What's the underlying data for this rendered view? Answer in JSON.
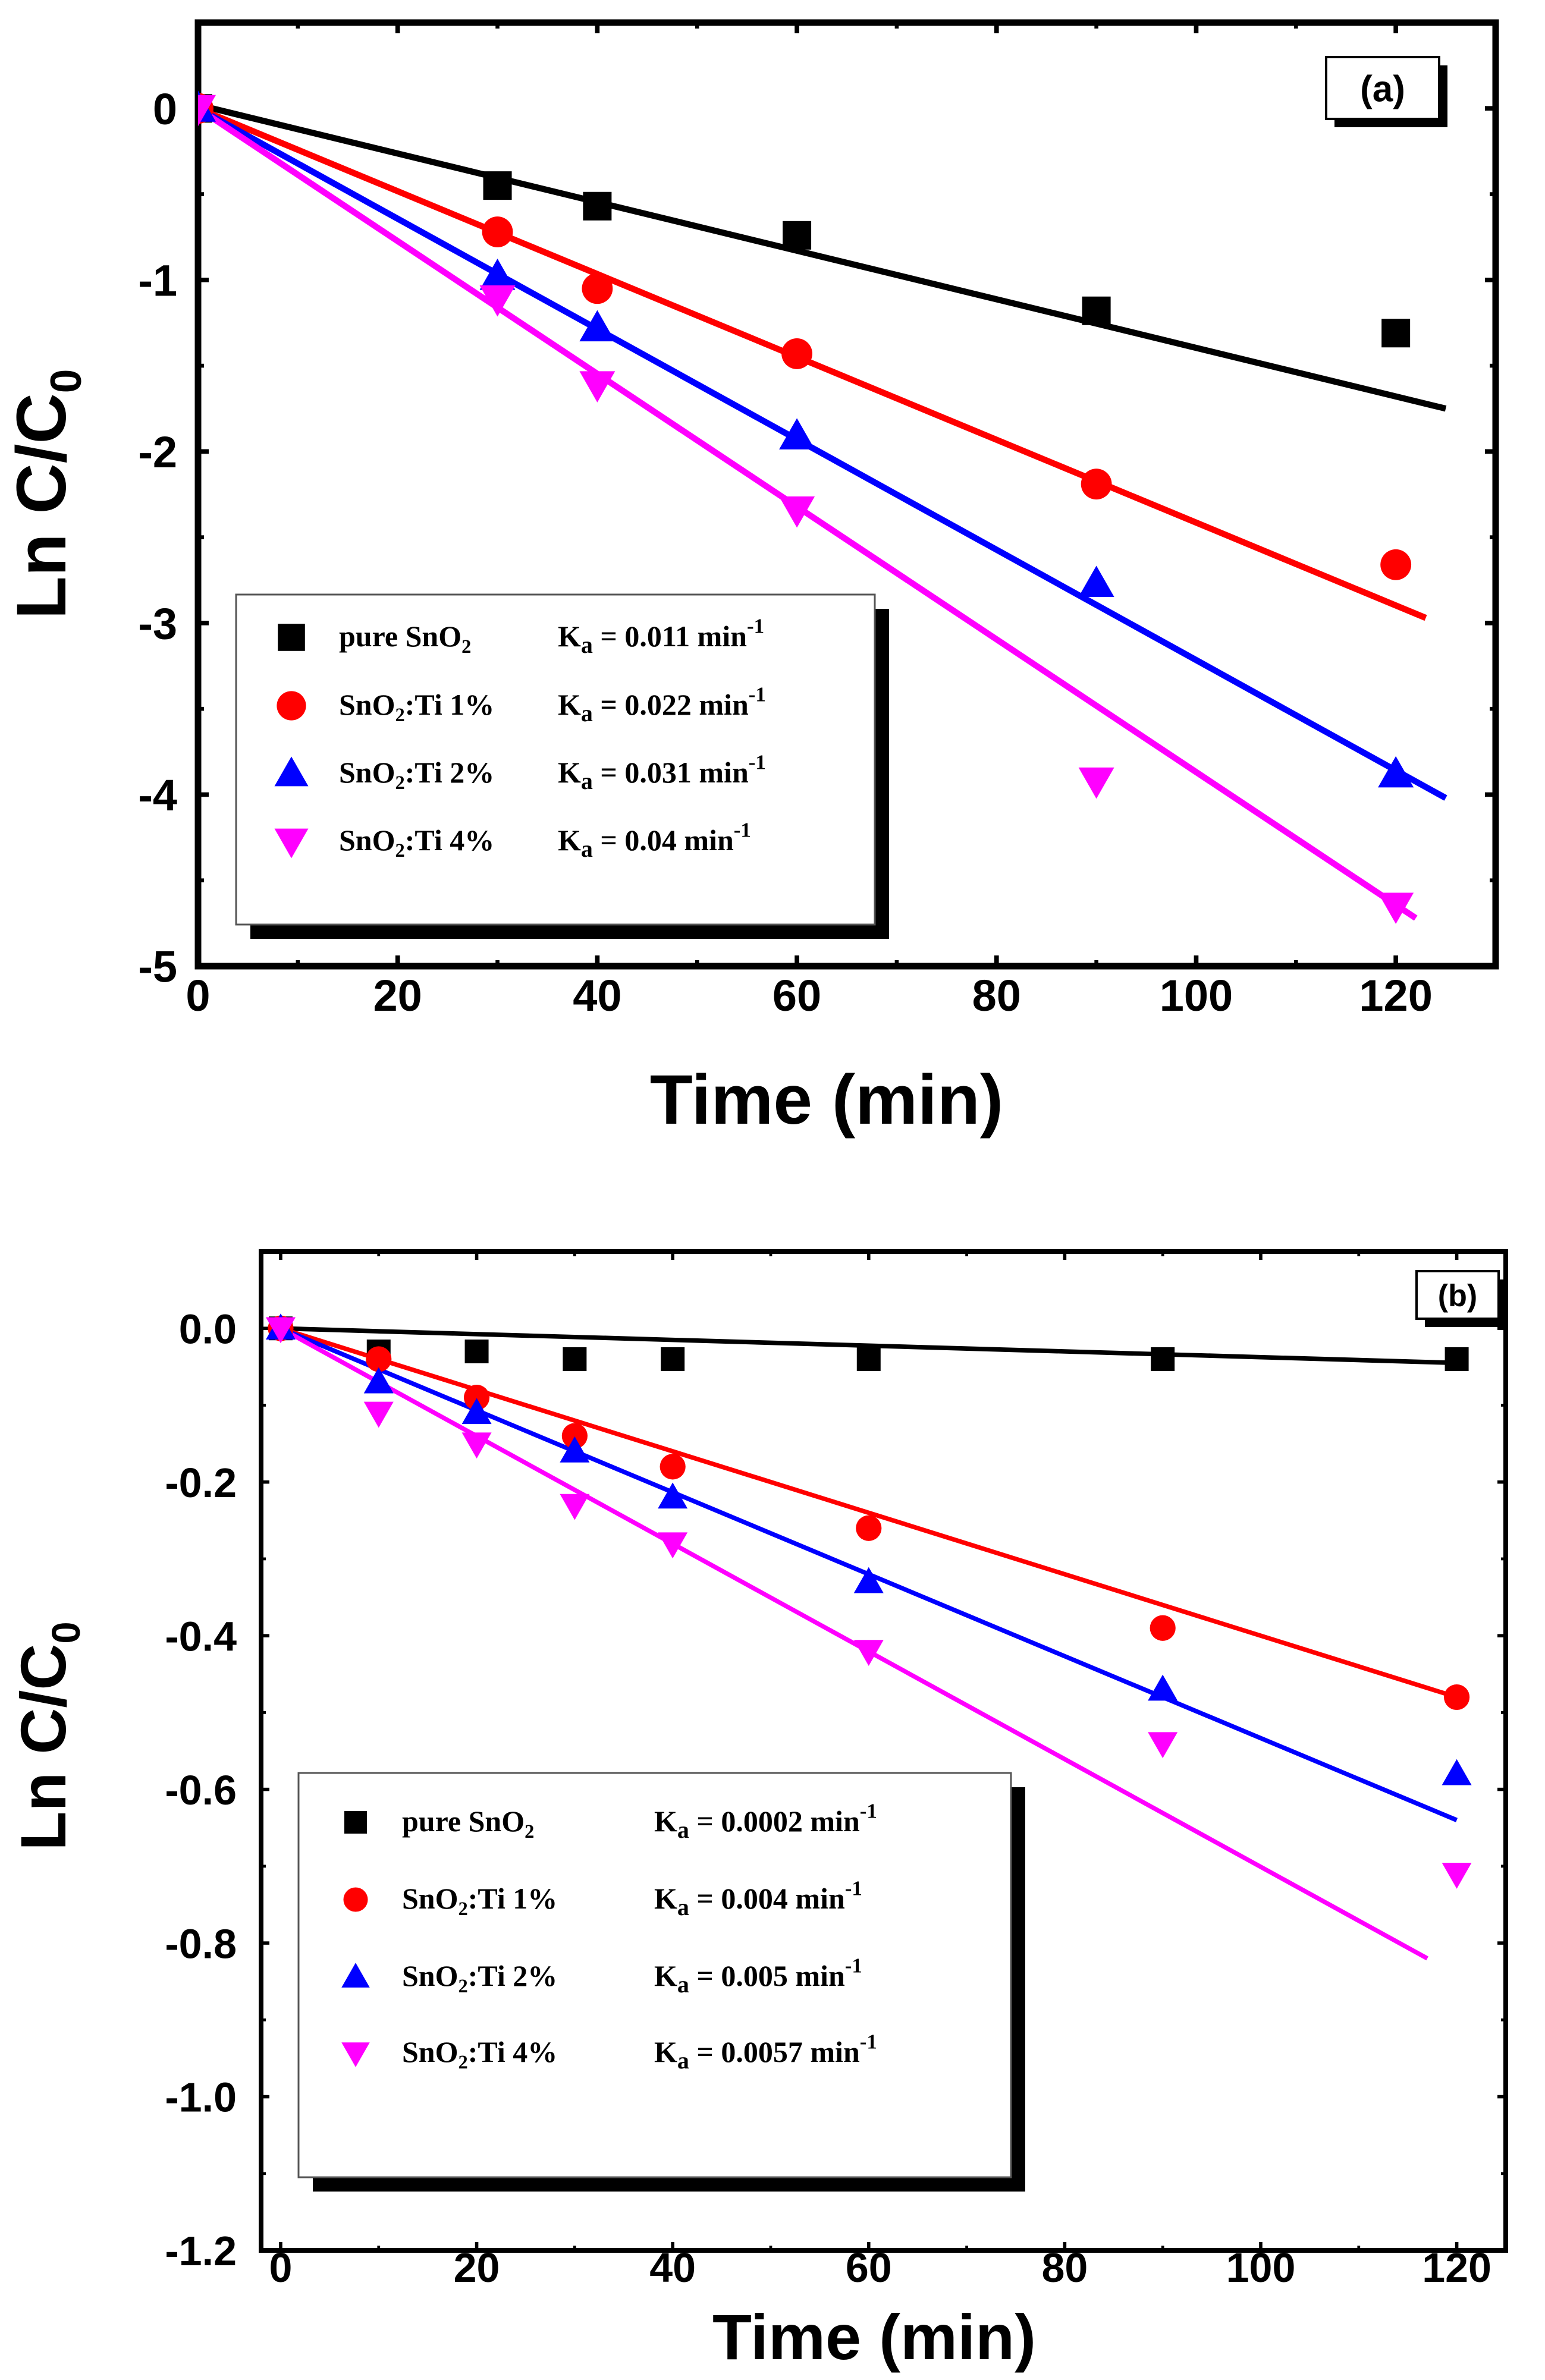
{
  "chart_data": [
    {
      "type": "scatter",
      "panel_label": "(a)",
      "xlabel": "Time (min)",
      "ylabel_main": "Ln C/C",
      "ylabel_sub": "0",
      "xlim": [
        0,
        130
      ],
      "ylim": [
        -5,
        0.5
      ],
      "xticks": [
        0,
        20,
        40,
        60,
        80,
        100,
        120
      ],
      "xtick_labels": [
        "0",
        "20",
        "40",
        "60",
        "80",
        "100",
        "120"
      ],
      "yticks": [
        0,
        -1,
        -2,
        -3,
        -4,
        -5
      ],
      "ytick_labels": [
        "0",
        "-1",
        "-2",
        "-3",
        "-4",
        "-5"
      ],
      "legend_position": "bottom-left",
      "series": [
        {
          "name_main": "pure SnO",
          "name_sub": "2",
          "name_rest": "",
          "k_main": "K",
          "k_sub": "a",
          "k_value": " = 0.011 min",
          "k_sup": "-1",
          "marker": "square",
          "color": "#000000",
          "x": [
            0,
            30,
            40,
            60,
            90,
            120
          ],
          "y": [
            0,
            -0.45,
            -0.57,
            -0.74,
            -1.18,
            -1.31
          ],
          "fit": {
            "x0": 0,
            "y0": 0.02,
            "x1": 125,
            "y1": -1.75
          }
        },
        {
          "name_main": "SnO",
          "name_sub": "2",
          "name_rest": ":Ti 1%",
          "k_main": "K",
          "k_sub": "a",
          "k_value": " = 0.022 min",
          "k_sup": "-1",
          "marker": "circle",
          "color": "#ff0000",
          "x": [
            0,
            30,
            40,
            60,
            90,
            120
          ],
          "y": [
            0,
            -0.72,
            -1.05,
            -1.43,
            -2.19,
            -2.66
          ],
          "fit": {
            "x0": 0,
            "y0": 0,
            "x1": 123,
            "y1": -2.97
          }
        },
        {
          "name_main": "SnO",
          "name_sub": "2",
          "name_rest": ":Ti 2%",
          "k_main": "K",
          "k_sub": "a",
          "k_value": " = 0.031 min",
          "k_sup": "-1",
          "marker": "triangle-up",
          "color": "#0000ff",
          "x": [
            0,
            30,
            40,
            60,
            90,
            120
          ],
          "y": [
            0,
            -0.98,
            -1.28,
            -1.91,
            -2.77,
            -3.88
          ],
          "fit": {
            "x0": 0,
            "y0": 0,
            "x1": 125,
            "y1": -4.02
          }
        },
        {
          "name_main": "SnO",
          "name_sub": "2",
          "name_rest": ":Ti 4%",
          "k_main": "K",
          "k_sub": "a",
          "k_value": " = 0.04 min",
          "k_sup": "-1",
          "marker": "triangle-down",
          "color": "#ff00ff",
          "x": [
            0,
            30,
            40,
            60,
            90,
            120
          ],
          "y": [
            0,
            -1.11,
            -1.61,
            -2.34,
            -3.92,
            -4.65
          ],
          "fit": {
            "x0": 0,
            "y0": 0,
            "x1": 122,
            "y1": -4.72
          }
        }
      ]
    },
    {
      "type": "scatter",
      "panel_label": "(b)",
      "xlabel": "Time (min)",
      "ylabel_main": "Ln C/C",
      "ylabel_sub": "0",
      "xlim": [
        -2,
        125
      ],
      "ylim": [
        -1.2,
        0.1
      ],
      "xticks": [
        0,
        20,
        40,
        60,
        80,
        100,
        120
      ],
      "xtick_labels": [
        "0",
        "20",
        "40",
        "60",
        "80",
        "100",
        "120"
      ],
      "yticks": [
        0,
        -0.2,
        -0.4,
        -0.6,
        -0.8,
        -1.0,
        -1.2
      ],
      "ytick_labels": [
        "0.0",
        "-0.2",
        "-0.4",
        "-0.6",
        "-0.8",
        "-1.0",
        "-1.2"
      ],
      "legend_position": "bottom-left",
      "series": [
        {
          "name_main": "pure SnO",
          "name_sub": "2",
          "name_rest": "",
          "k_main": "K",
          "k_sub": "a",
          "k_value": " = 0.0002 min",
          "k_sup": "-1",
          "marker": "square",
          "color": "#000000",
          "x": [
            0,
            10,
            20,
            30,
            40,
            60,
            90,
            120
          ],
          "y": [
            0,
            -0.03,
            -0.03,
            -0.04,
            -0.04,
            -0.04,
            -0.04,
            -0.04
          ],
          "fit": {
            "x0": 0,
            "y0": 0,
            "x1": 120,
            "y1": -0.045
          }
        },
        {
          "name_main": "SnO",
          "name_sub": "2",
          "name_rest": ":Ti 1%",
          "k_main": "K",
          "k_sub": "a",
          "k_value": " = 0.004 min",
          "k_sup": "-1",
          "marker": "circle",
          "color": "#ff0000",
          "x": [
            0,
            10,
            20,
            30,
            40,
            60,
            90,
            120
          ],
          "y": [
            0,
            -0.04,
            -0.09,
            -0.14,
            -0.18,
            -0.26,
            -0.39,
            -0.48
          ],
          "fit": {
            "x0": 0,
            "y0": 0,
            "x1": 120,
            "y1": -0.48
          }
        },
        {
          "name_main": "SnO",
          "name_sub": "2",
          "name_rest": ":Ti 2%",
          "k_main": "K",
          "k_sub": "a",
          "k_value": " = 0.005 min",
          "k_sup": "-1",
          "marker": "triangle-up",
          "color": "#0000ff",
          "x": [
            0,
            10,
            20,
            30,
            40,
            60,
            90,
            120
          ],
          "y": [
            0,
            -0.07,
            -0.11,
            -0.16,
            -0.22,
            -0.33,
            -0.47,
            -0.58
          ],
          "fit": {
            "x0": 0,
            "y0": 0,
            "x1": 120,
            "y1": -0.64
          }
        },
        {
          "name_main": "SnO",
          "name_sub": "2",
          "name_rest": ":Ti 4%",
          "k_main": "K",
          "k_sub": "a",
          "k_value": " = 0.0057 min",
          "k_sup": "-1",
          "marker": "triangle-down",
          "color": "#ff00ff",
          "x": [
            0,
            10,
            20,
            30,
            40,
            60,
            90,
            120
          ],
          "y": [
            0,
            -0.11,
            -0.15,
            -0.23,
            -0.28,
            -0.42,
            -0.54,
            -0.71
          ],
          "fit": {
            "x0": 0,
            "y0": 0,
            "x1": 117,
            "y1": -0.82
          }
        }
      ]
    }
  ]
}
